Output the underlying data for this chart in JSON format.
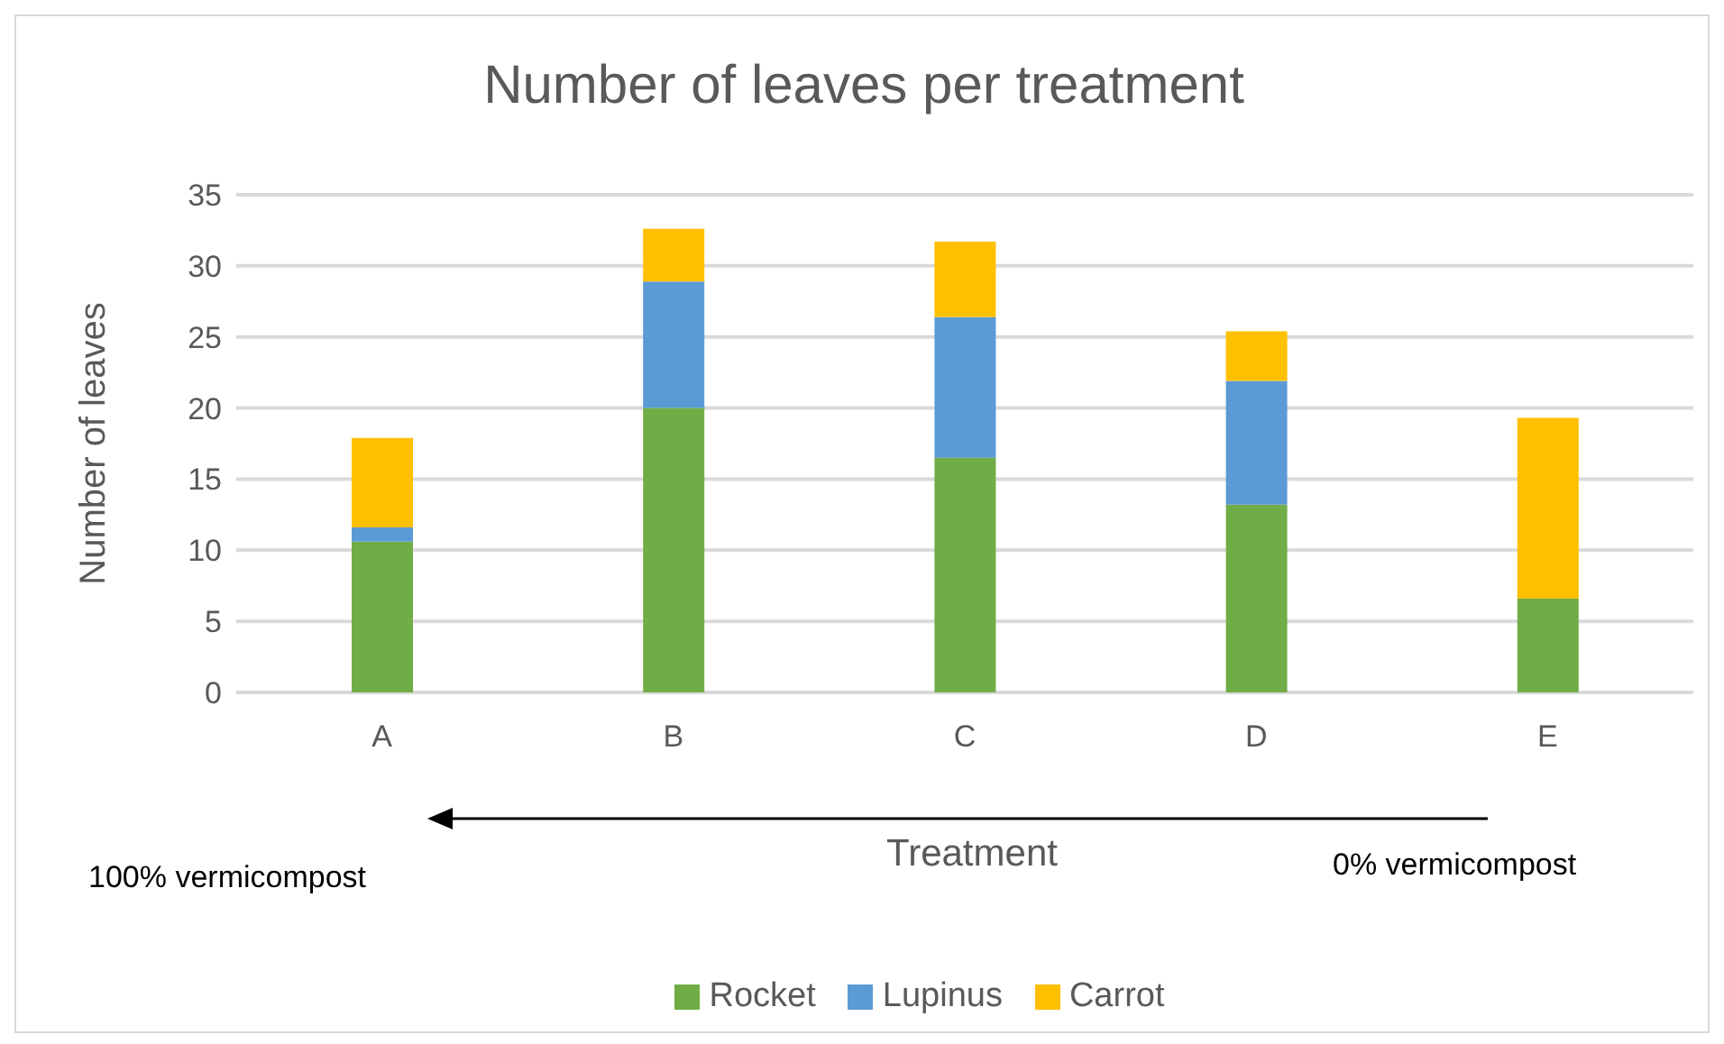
{
  "chart_data": {
    "type": "bar",
    "title": "Number of leaves per treatment",
    "xlabel": "Treatment",
    "ylabel": "Number of leaves",
    "categories": [
      "A",
      "B",
      "C",
      "D",
      "E"
    ],
    "series": [
      {
        "name": "Rocket",
        "color": "#70ad47",
        "values": [
          10.6,
          20.0,
          16.5,
          13.2,
          6.6
        ]
      },
      {
        "name": "Lupinus",
        "color": "#5b9bd5",
        "values": [
          1.0,
          8.9,
          9.9,
          8.7,
          0
        ]
      },
      {
        "name": "Carrot",
        "color": "#ffc000",
        "values": [
          6.3,
          3.7,
          5.3,
          3.5,
          12.7
        ]
      }
    ],
    "stacked": true,
    "ylim": [
      0,
      35
    ],
    "yticks": [
      0,
      5,
      10,
      15,
      20,
      25,
      30,
      35
    ],
    "grid": "y",
    "legend": "bottom",
    "annotations": [
      "100% vermicompost",
      "0% vermicompost"
    ]
  }
}
